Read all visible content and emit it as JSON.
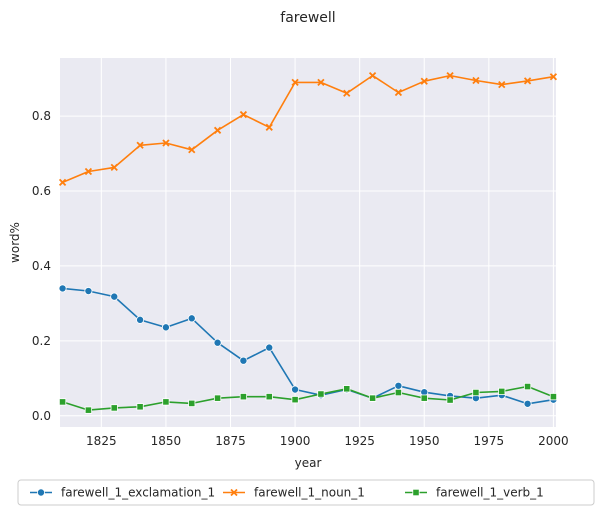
{
  "chart_data": {
    "type": "line",
    "title": "farewell",
    "xlabel": "year",
    "ylabel": "word%",
    "xlim": [
      1809,
      2001
    ],
    "ylim": [
      -0.03,
      0.955
    ],
    "xticks": [
      1825,
      1850,
      1875,
      1900,
      1925,
      1950,
      1975,
      2000
    ],
    "yticks": [
      0.0,
      0.2,
      0.4,
      0.6,
      0.8
    ],
    "ytick_labels": [
      "0.0",
      "0.2",
      "0.4",
      "0.6",
      "0.8"
    ],
    "grid": true,
    "legend_position": "bottom",
    "x": [
      1810,
      1820,
      1830,
      1840,
      1850,
      1860,
      1870,
      1880,
      1890,
      1900,
      1910,
      1920,
      1930,
      1940,
      1950,
      1960,
      1970,
      1980,
      1990,
      2000
    ],
    "series": [
      {
        "name": "farewell_1_exclamation_1",
        "color": "#1f77b4",
        "marker": "circle",
        "values": [
          0.34,
          0.333,
          0.318,
          0.256,
          0.236,
          0.26,
          0.195,
          0.147,
          0.182,
          0.07,
          0.055,
          0.07,
          0.047,
          0.08,
          0.063,
          0.053,
          0.047,
          0.055,
          0.032,
          0.043
        ]
      },
      {
        "name": "farewell_1_noun_1",
        "color": "#ff7f0e",
        "marker": "x",
        "values": [
          0.623,
          0.652,
          0.663,
          0.722,
          0.728,
          0.71,
          0.762,
          0.804,
          0.77,
          0.89,
          0.89,
          0.861,
          0.908,
          0.863,
          0.893,
          0.908,
          0.895,
          0.884,
          0.894,
          0.905
        ]
      },
      {
        "name": "farewell_1_verb_1",
        "color": "#2ca02c",
        "marker": "square",
        "values": [
          0.037,
          0.015,
          0.021,
          0.024,
          0.037,
          0.033,
          0.047,
          0.051,
          0.051,
          0.043,
          0.058,
          0.072,
          0.047,
          0.062,
          0.047,
          0.042,
          0.062,
          0.065,
          0.078,
          0.051
        ]
      }
    ]
  }
}
